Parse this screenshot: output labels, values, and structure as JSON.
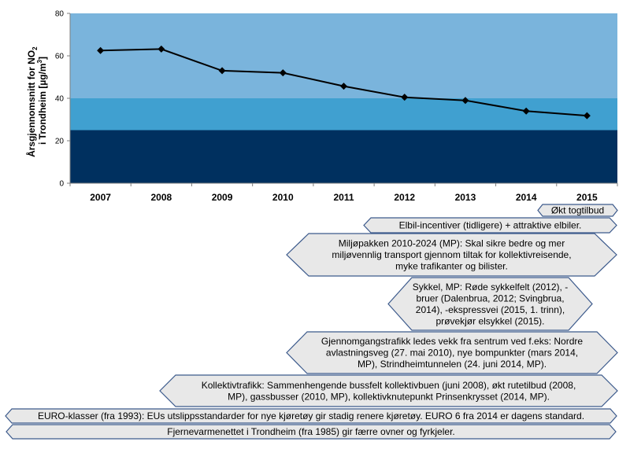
{
  "chart_data": {
    "type": "line",
    "categories": [
      "2007",
      "2008",
      "2009",
      "2010",
      "2011",
      "2012",
      "2013",
      "2014",
      "2015"
    ],
    "values": [
      62.5,
      63.2,
      53.0,
      52.0,
      45.7,
      40.5,
      39.0,
      34.0,
      31.8
    ],
    "ylim": [
      0,
      80
    ],
    "yticks": [
      "0",
      "20",
      "40",
      "60",
      "80"
    ],
    "ylabel_line1": "Årsgjennomsnitt for NO",
    "ylabel_sub": "2",
    "ylabel_line2": "i Trondheim  [µg/m",
    "ylabel_sup": "3",
    "ylabel_end": "]",
    "bands": [
      {
        "from": 0,
        "to": 25,
        "color": "#00305f"
      },
      {
        "from": 25,
        "to": 40,
        "color": "#40a0d0"
      },
      {
        "from": 40,
        "to": 80,
        "color": "#7ab4dc"
      }
    ],
    "line_color": "#000000",
    "grid": false
  },
  "timeline": [
    {
      "lines": [
        "Økt togtilbud"
      ]
    },
    {
      "lines": [
        "Elbil-incentiver  (tidligere) + attraktive elbiler."
      ]
    },
    {
      "lines": [
        "Miljøpakken 2010-2024 (MP): Skal sikre bedre og mer",
        "miljøvennlig transport gjennom tiltak for kollektivreisende,",
        "myke trafikanter og bilister."
      ]
    },
    {
      "lines": [
        "Sykkel, MP: Røde sykkelfelt (2012), -",
        "bruer (Dalenbrua, 2012; Svingbrua,",
        "2014), -ekspressvei (2015, 1. trinn),",
        "prøvekjør elsykkel (2015)."
      ]
    },
    {
      "lines": [
        "Gjennomgangstrafikk ledes vekk fra sentrum ved f.eks: Nordre",
        "avlastningsveg (27. mai 2010), nye bompunkter (mars 2014,",
        "MP), Strindheimtunnelen (24. juni 2014, MP)."
      ]
    },
    {
      "lines": [
        "Kollektivtrafikk: Sammenhengende bussfelt kollektivbuen (juni 2008), økt rutetilbud (2008,",
        "MP), gassbusser (2010, MP), kollektivknutepunkt Prinsenkrysset (2014, MP)."
      ]
    },
    {
      "lines": [
        "EURO-klasser (fra 1993): EUs utslippsstandarder for nye kjøretøy gir stadig renere kjøretøy. EURO 6 fra 2014 er dagens standard."
      ]
    },
    {
      "lines": [
        "Fjernevarmenettet i Trondheim (fra 1985) gir færre ovner og fyrkjeler."
      ]
    }
  ],
  "colors": {
    "box_fill": "#e8e8e8",
    "box_stroke": "#3c5a8c"
  }
}
